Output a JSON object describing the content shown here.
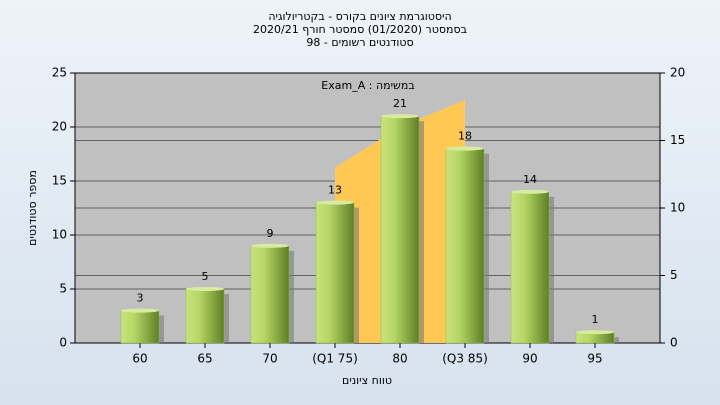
{
  "chart_data": {
    "type": "bar",
    "title": [
      "היסטוגרמת ציונים בקורס - בקטריולוגיה",
      "בסמסטר  (01/2020)  סמסטר חורף  2020/21",
      "סטודנטים רשומים - 98"
    ],
    "annotation": "Exam_A : במשימה",
    "xlabel": "טווח ציונים",
    "ylabel": "מספר סטודנטים",
    "categories": [
      "60",
      "65",
      "70",
      "(Q1 75)",
      "80",
      "(Q3 85)",
      "90",
      "95"
    ],
    "values": [
      3,
      5,
      9,
      13,
      21,
      18,
      14,
      1
    ],
    "color": "#8fbf3a",
    "series": [
      {
        "color": "#ffc853",
        "axis": "y2",
        "values": [
          null,
          null,
          null,
          13,
          16,
          18,
          null,
          null
        ]
      }
    ],
    "ylim": [
      0,
      25
    ],
    "yticks": [
      0,
      5,
      10,
      15,
      20,
      25
    ],
    "y2lim": [
      0,
      20
    ],
    "y2ticks": [
      0,
      5,
      10,
      15,
      20
    ],
    "grid": true
  }
}
